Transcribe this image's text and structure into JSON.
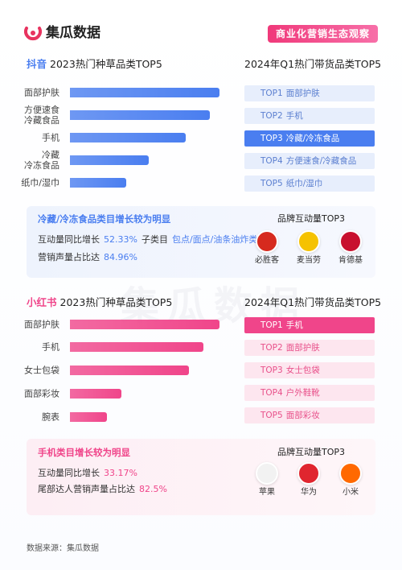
{
  "header": {
    "logo": "集瓜数据",
    "badge": "商业化营销生态观察"
  },
  "watermark": "集瓜数据",
  "chart_data": [
    {
      "type": "bar",
      "orientation": "horizontal",
      "platform": "抖音",
      "title": "2023热门种草品类TOP5",
      "categories": [
        "面部护肤",
        "方便速食\n冷藏食品",
        "手机",
        "冷藏\n冷冻食品",
        "纸巾/湿巾"
      ],
      "values": [
        93,
        87,
        72,
        49,
        35
      ],
      "xlim": [
        0,
        100
      ],
      "color": "#4a7ef0"
    },
    {
      "type": "bar",
      "orientation": "horizontal",
      "platform": "小红书",
      "title": "2023热门种草品类TOP5",
      "categories": [
        "面部护肤",
        "手机",
        "女士包袋",
        "面部彩妆",
        "腕表"
      ],
      "values": [
        93,
        83,
        74,
        32,
        23
      ],
      "xlim": [
        0,
        100
      ],
      "color": "#f0458a"
    }
  ],
  "panels": [
    {
      "ranking_title": "2024年Q1热门带货品类TOP5",
      "ranking": [
        {
          "rank": "TOP1",
          "name": "面部护肤"
        },
        {
          "rank": "TOP2",
          "name": "手机"
        },
        {
          "rank": "TOP3",
          "name": "冷藏/冷冻食品"
        },
        {
          "rank": "TOP4",
          "name": "方便速食/冷藏食品"
        },
        {
          "rank": "TOP5",
          "name": "纸巾/湿巾"
        }
      ],
      "highlight": 2,
      "insight_title": "冷藏/冷冻食品类目增长较为明显",
      "insight_lines": [
        [
          "互动量同比增长",
          "52.33%",
          "子类目",
          "包点/面点/油条油炸类"
        ],
        [
          "营销声量占比达",
          "84.96%"
        ]
      ],
      "brands_title": "品牌互动量TOP3",
      "brands": [
        {
          "name": "必胜客",
          "color": "#d62a1e"
        },
        {
          "name": "麦当劳",
          "color": "#f5c200"
        },
        {
          "name": "肯德基",
          "color": "#c8102e"
        }
      ]
    },
    {
      "ranking_title": "2024年Q1热门带货品类TOP5",
      "ranking": [
        {
          "rank": "TOP1",
          "name": "手机"
        },
        {
          "rank": "TOP2",
          "name": "面部护肤"
        },
        {
          "rank": "TOP3",
          "name": "女士包袋"
        },
        {
          "rank": "TOP4",
          "name": "户外鞋靴"
        },
        {
          "rank": "TOP5",
          "name": "面部彩妆"
        }
      ],
      "highlight": 0,
      "insight_title": "手机类目增长较为明显",
      "insight_lines": [
        [
          "互动量同比增长",
          "33.17%"
        ],
        [
          "尾部达人营销声量占比达",
          "82.5%"
        ]
      ],
      "brands_title": "品牌互动量TOP3",
      "brands": [
        {
          "name": "苹果",
          "color": "#f2f2f2"
        },
        {
          "name": "华为",
          "color": "#e0262f"
        },
        {
          "name": "小米",
          "color": "#ff6900"
        }
      ]
    }
  ],
  "footer": "数据来源：集瓜数据"
}
